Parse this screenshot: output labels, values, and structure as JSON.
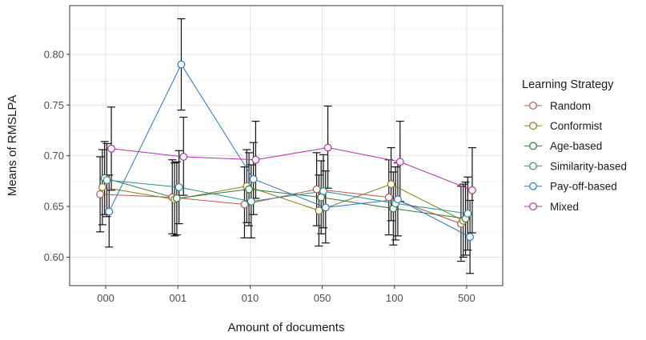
{
  "chart_data": {
    "type": "line",
    "title": "",
    "xlabel": "Amount of documents",
    "ylabel": "Means of RMSLPA",
    "categories": [
      "000",
      "001",
      "010",
      "050",
      "100",
      "500"
    ],
    "ylim": [
      0.572,
      0.848
    ],
    "yticks": [
      0.6,
      0.65,
      0.7,
      0.75,
      0.8
    ],
    "ytick_labels": [
      "0.60",
      "0.65",
      "0.70",
      "0.75",
      "0.80"
    ],
    "grid": true,
    "legend": {
      "title": "Learning Strategy",
      "position": "right"
    },
    "error_bars": true,
    "series": [
      {
        "name": "Random",
        "color": "#b5564a",
        "values": [
          0.662,
          0.659,
          0.652,
          0.667,
          0.659,
          0.633
        ],
        "lower": [
          0.625,
          0.623,
          0.619,
          0.631,
          0.622,
          0.596
        ],
        "upper": [
          0.699,
          0.696,
          0.689,
          0.703,
          0.696,
          0.67
        ]
      },
      {
        "name": "Conformist",
        "color": "#8b7a1a",
        "values": [
          0.669,
          0.657,
          0.67,
          0.646,
          0.672,
          0.636
        ],
        "lower": [
          0.632,
          0.621,
          0.634,
          0.611,
          0.636,
          0.6
        ],
        "upper": [
          0.706,
          0.693,
          0.706,
          0.681,
          0.708,
          0.672
        ]
      },
      {
        "name": "Age-based",
        "color": "#2f7a38",
        "values": [
          0.678,
          0.658,
          0.667,
          0.659,
          0.648,
          0.638
        ],
        "lower": [
          0.642,
          0.622,
          0.631,
          0.623,
          0.612,
          0.602
        ],
        "upper": [
          0.714,
          0.694,
          0.703,
          0.695,
          0.684,
          0.674
        ]
      },
      {
        "name": "Similarity-based",
        "color": "#2a8f8f",
        "values": [
          0.676,
          0.669,
          0.655,
          0.665,
          0.653,
          0.643
        ],
        "lower": [
          0.64,
          0.633,
          0.619,
          0.629,
          0.617,
          0.607
        ],
        "upper": [
          0.712,
          0.705,
          0.691,
          0.701,
          0.689,
          0.679
        ]
      },
      {
        "name": "Pay-off-based",
        "color": "#2b76c2",
        "values": [
          0.645,
          0.79,
          0.677,
          0.649,
          0.657,
          0.62
        ],
        "lower": [
          0.61,
          0.745,
          0.642,
          0.614,
          0.621,
          0.584
        ],
        "upper": [
          0.681,
          0.835,
          0.713,
          0.685,
          0.693,
          0.656
        ]
      },
      {
        "name": "Mixed",
        "color": "#b12fb1",
        "values": [
          0.707,
          0.699,
          0.696,
          0.708,
          0.694,
          0.666
        ],
        "lower": [
          0.666,
          0.661,
          0.658,
          0.668,
          0.655,
          0.624
        ],
        "upper": [
          0.748,
          0.738,
          0.734,
          0.749,
          0.734,
          0.708
        ]
      }
    ]
  }
}
